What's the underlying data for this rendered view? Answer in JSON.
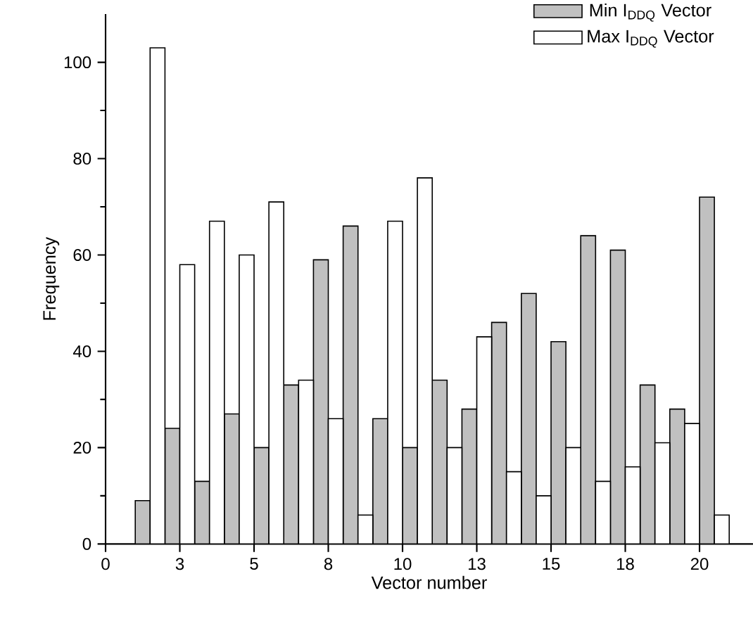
{
  "chart_data": {
    "type": "bar",
    "xlabel": "Vector number",
    "ylabel": "Frequency",
    "xlim": [
      0,
      21.8
    ],
    "ylim": [
      0,
      110
    ],
    "xticks": [
      0,
      {
        "value": 2.5,
        "label": "3"
      },
      5,
      {
        "value": 7.5,
        "label": "8"
      },
      10,
      {
        "value": 12.5,
        "label": "13"
      },
      15,
      {
        "value": 17.5,
        "label": "18"
      },
      20
    ],
    "yticks": [
      0,
      20,
      40,
      60,
      80,
      100
    ],
    "legend": "top right",
    "series": [
      {
        "name": "Min I$_{DDQ}$ Vector",
        "color": "#c0c0c0",
        "x": [
          1.25,
          2.25,
          3.25,
          4.25,
          5.25,
          6.25,
          7.25,
          8.25,
          9.25,
          10.25,
          11.25,
          12.25,
          13.25,
          14.25,
          15.25,
          16.25,
          17.25,
          18.25,
          19.25,
          20.25
        ],
        "values": [
          9,
          24,
          13,
          27,
          20,
          33,
          59,
          66,
          26,
          20,
          34,
          28,
          46,
          52,
          42,
          64,
          61,
          33,
          28,
          72
        ]
      },
      {
        "name": "Max I$_{DDQ}$ Vector",
        "color": "#ffffff",
        "x": [
          1.75,
          2.75,
          3.75,
          4.75,
          5.75,
          6.75,
          7.75,
          8.75,
          9.75,
          10.75,
          11.75,
          12.75,
          13.75,
          14.75,
          15.75,
          16.75,
          17.75,
          18.75,
          19.75,
          20.75
        ],
        "values": [
          103,
          58,
          67,
          60,
          71,
          34,
          26,
          6,
          67,
          76,
          20,
          43,
          15,
          10,
          20,
          13,
          16,
          21,
          25,
          6
        ]
      }
    ]
  }
}
